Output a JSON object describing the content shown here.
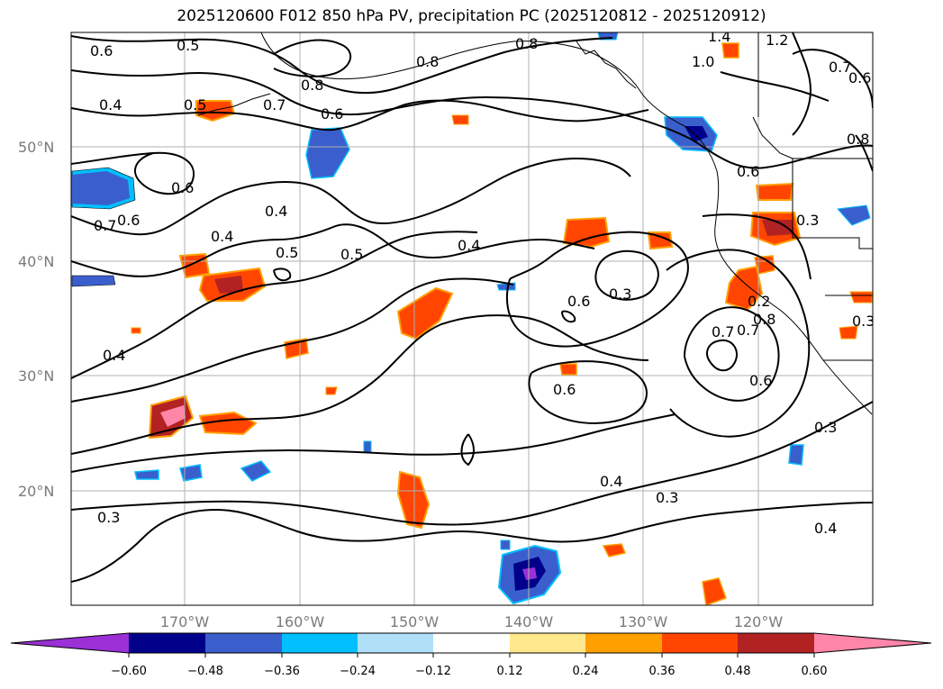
{
  "title": "2025120600 F012 850 hPa PV, precipitation PC (2025120812 - 2025120912)",
  "map": {
    "lat_labels": [
      "50°N",
      "40°N",
      "30°N",
      "20°N"
    ],
    "lon_labels": [
      "170°W",
      "160°W",
      "150°W",
      "140°W",
      "130°W",
      "120°W"
    ],
    "contour_labels": [
      "0.6",
      "0.5",
      "0.8",
      "1.4",
      "1.2",
      "0.7",
      "0.6",
      "0.4",
      "0.5",
      "0.7",
      "0.6",
      "0.8",
      "1.0",
      "0.8",
      "0.7",
      "0.6",
      "0.8",
      "0.6",
      "0.6",
      "0.3",
      "0.7",
      "0.6",
      "0.4",
      "0.4",
      "0.5",
      "0.5",
      "0.4",
      "0.3",
      "0.6",
      "0.7",
      "0.8",
      "0.6",
      "0.4",
      "0.4",
      "0.3",
      "0.3",
      "0.4",
      "0.3",
      "0.2",
      "0.3"
    ]
  },
  "colorbar": {
    "ticks": [
      "−0.60",
      "−0.48",
      "−0.36",
      "−0.24",
      "−0.12",
      "0.12",
      "0.24",
      "0.36",
      "0.48",
      "0.60"
    ],
    "colors": [
      "#9a30d6",
      "#00008b",
      "#3a5fcd",
      "#00bfff",
      "#b0e0f8",
      "#ffffff",
      "#ffe88c",
      "#ffa000",
      "#ff4500",
      "#b22222",
      "#ff86a8"
    ]
  }
}
